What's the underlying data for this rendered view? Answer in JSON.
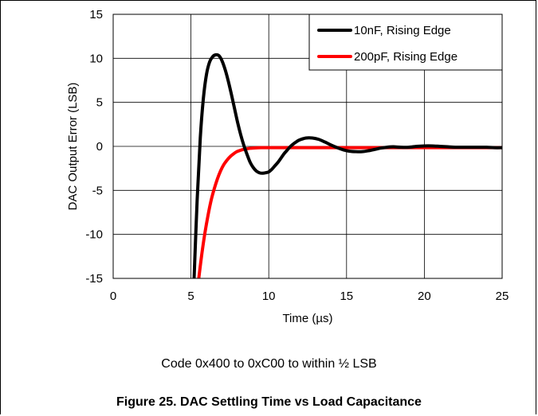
{
  "chart_data": {
    "type": "line",
    "title": "",
    "xlabel": "Time (µs)",
    "ylabel": "DAC Output Error (LSB)",
    "xlim": [
      0,
      25
    ],
    "ylim": [
      -15,
      15
    ],
    "xticks": [
      "0",
      "5",
      "10",
      "15",
      "20",
      "25"
    ],
    "yticks": [
      "15",
      "10",
      "5",
      "0",
      "-5",
      "-10",
      "-15"
    ],
    "grid": true,
    "legend_position": "top-right",
    "series": [
      {
        "name": "10nF, Rising Edge",
        "color": "#000000",
        "x": [
          5.2,
          5.4,
          5.6,
          5.8,
          6.0,
          6.2,
          6.4,
          6.6,
          6.8,
          7.0,
          7.2,
          7.4,
          7.6,
          7.8,
          8.0,
          8.2,
          8.4,
          8.6,
          8.8,
          9.0,
          9.2,
          9.4,
          9.6,
          9.8,
          10.0,
          10.2,
          10.4,
          10.6,
          10.8,
          11.0,
          11.2,
          11.4,
          11.6,
          11.8,
          12.0,
          12.4,
          12.8,
          13.2,
          13.6,
          14.0,
          14.4,
          14.8,
          15.2,
          15.6,
          16.0,
          16.4,
          16.8,
          17.2,
          17.6,
          18.0,
          18.5,
          19.0,
          19.5,
          20.0,
          20.5,
          21.0,
          21.5,
          22.0,
          22.5,
          23.0,
          23.5,
          24.0,
          24.5,
          25.0
        ],
        "y": [
          -15,
          -6,
          1,
          5.5,
          8.2,
          9.6,
          10.2,
          10.4,
          10.3,
          9.7,
          8.7,
          7.4,
          5.9,
          4.3,
          2.7,
          1.3,
          0.1,
          -0.9,
          -1.8,
          -2.4,
          -2.8,
          -3.0,
          -3.05,
          -3.0,
          -2.9,
          -2.6,
          -2.2,
          -1.8,
          -1.3,
          -0.8,
          -0.4,
          0.0,
          0.3,
          0.55,
          0.75,
          0.95,
          0.95,
          0.8,
          0.5,
          0.15,
          -0.15,
          -0.4,
          -0.55,
          -0.6,
          -0.6,
          -0.5,
          -0.35,
          -0.2,
          -0.1,
          -0.05,
          -0.1,
          -0.1,
          0.0,
          0.05,
          0.05,
          0.0,
          -0.05,
          -0.1,
          -0.1,
          -0.1,
          -0.1,
          -0.1,
          -0.15,
          -0.15
        ]
      },
      {
        "name": "200pF, Rising Edge",
        "color": "#ff0000",
        "x": [
          5.5,
          5.7,
          5.9,
          6.1,
          6.3,
          6.5,
          6.7,
          6.9,
          7.1,
          7.3,
          7.5,
          7.7,
          7.9,
          8.1,
          8.3,
          8.5,
          8.8,
          9.1,
          9.5,
          10.0,
          11.0,
          12.0,
          14.0,
          16.0,
          18.0,
          20.0,
          22.0,
          24.0,
          25.0
        ],
        "y": [
          -15,
          -12.2,
          -9.8,
          -7.8,
          -6.1,
          -4.8,
          -3.7,
          -2.8,
          -2.1,
          -1.6,
          -1.2,
          -0.9,
          -0.65,
          -0.5,
          -0.38,
          -0.3,
          -0.22,
          -0.18,
          -0.15,
          -0.15,
          -0.15,
          -0.15,
          -0.15,
          -0.15,
          -0.15,
          -0.15,
          -0.15,
          -0.15,
          -0.15
        ]
      }
    ]
  },
  "note": "Code 0x400 to 0xC00 to within ½ LSB",
  "caption": "Figure 25. DAC Settling Time vs Load Capacitance"
}
